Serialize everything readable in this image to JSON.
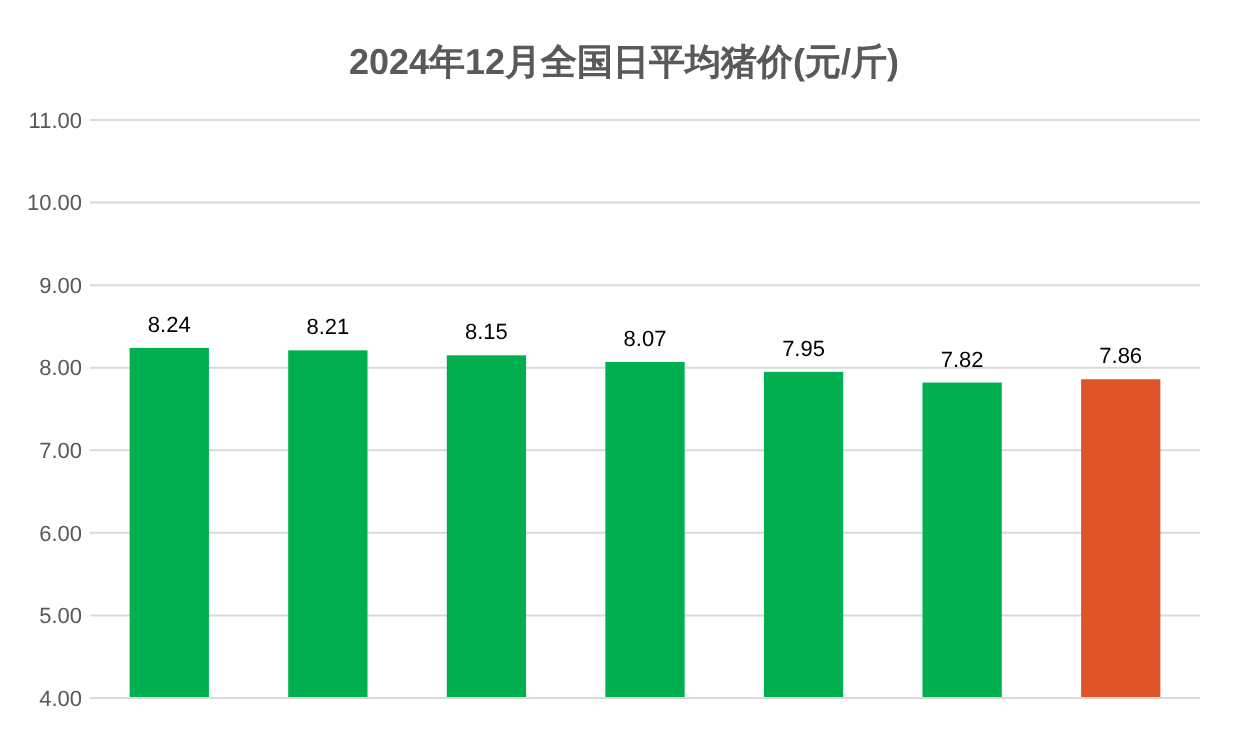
{
  "chart_data": {
    "type": "bar",
    "title": "2024年12月全国日平均猪价(元/斤)",
    "categories": [
      null,
      null,
      null,
      null,
      null,
      null,
      null
    ],
    "values": [
      8.24,
      8.21,
      8.15,
      8.07,
      7.95,
      7.82,
      7.86
    ],
    "colors": [
      "#00b050",
      "#00b050",
      "#00b050",
      "#00b050",
      "#00b050",
      "#00b050",
      "#e0542a"
    ],
    "ylim": [
      4,
      11
    ],
    "yticks": [
      {
        "value": 4,
        "label": "4.00"
      },
      {
        "value": 5,
        "label": "5.00"
      },
      {
        "value": 6,
        "label": "6.00"
      },
      {
        "value": 7,
        "label": "7.00"
      },
      {
        "value": 8,
        "label": "8.00"
      },
      {
        "value": 9,
        "label": "9.00"
      },
      {
        "value": 10,
        "label": "10.00"
      },
      {
        "value": 11,
        "label": "11.00"
      }
    ],
    "grid": "y",
    "data_labels": true
  }
}
